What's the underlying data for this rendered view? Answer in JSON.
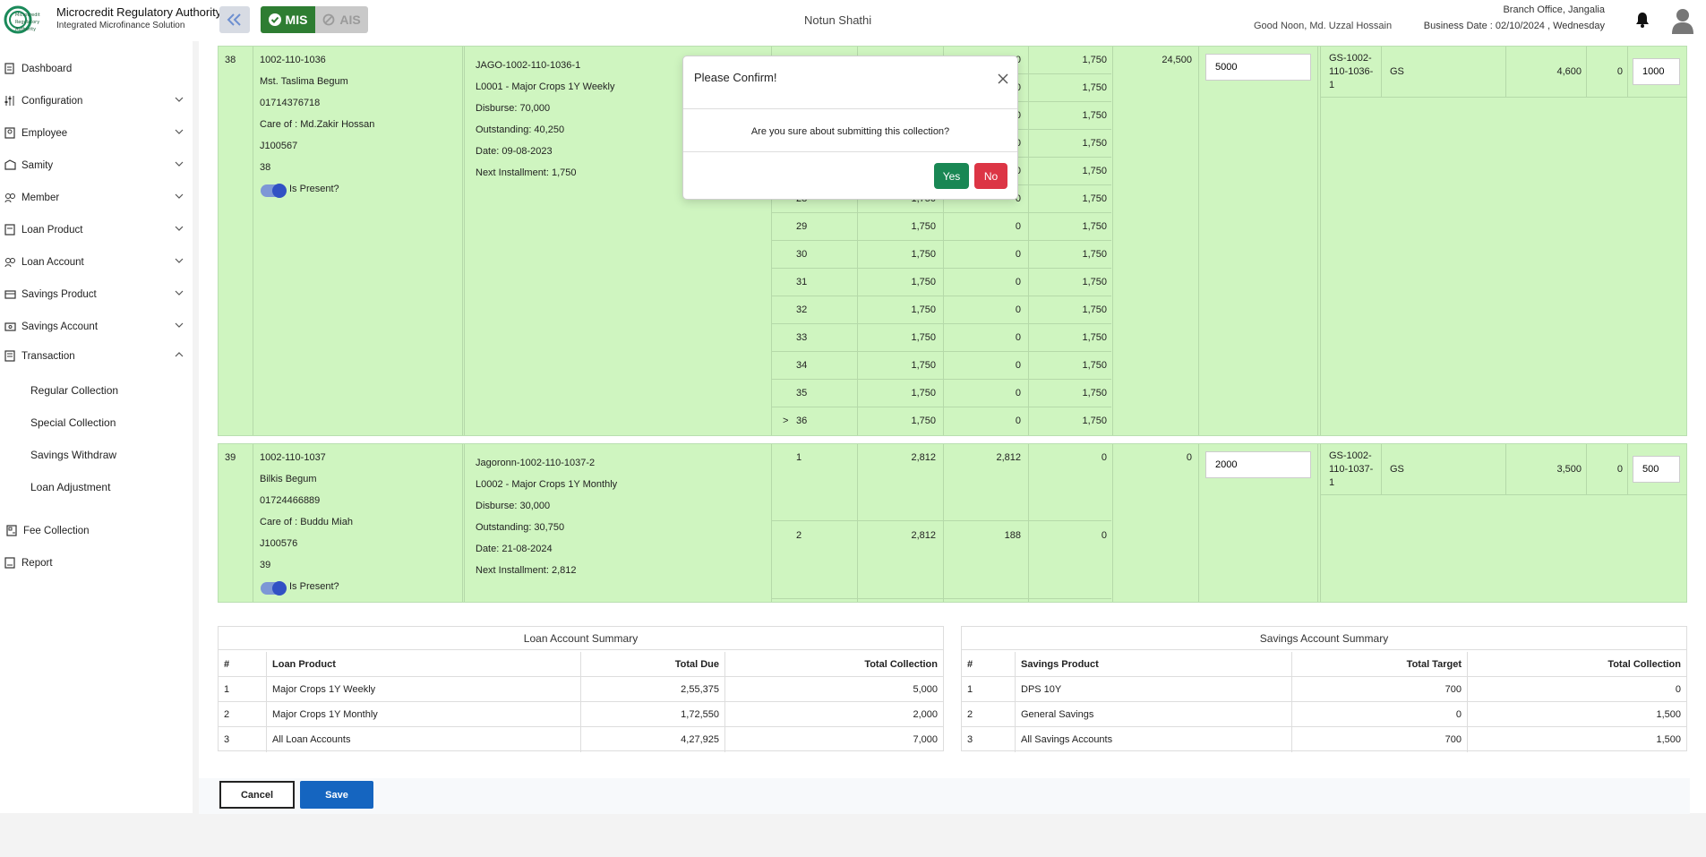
{
  "header": {
    "org_name": "Microcredit Regulatory Authority",
    "org_sub": "Integrated Microfinance Solution",
    "logo_text": "Microcredit Regulatory Authority",
    "mode_mis": "MIS",
    "mode_ais": "AIS",
    "samity_title": "Notun Shathi",
    "branch": "Branch Office, Jangalia",
    "greeting": "Good Noon, Md. Uzzal Hossain",
    "business_date": "Business Date : 02/10/2024 , Wednesday"
  },
  "sidebar": {
    "items": [
      {
        "label": "Dashboard",
        "icon": "dashboard-icon"
      },
      {
        "label": "Configuration",
        "icon": "sliders-icon"
      },
      {
        "label": "Employee",
        "icon": "employee-icon"
      },
      {
        "label": "Samity",
        "icon": "samity-icon"
      },
      {
        "label": "Member",
        "icon": "member-icon"
      },
      {
        "label": "Loan Product",
        "icon": "loan-product-icon"
      },
      {
        "label": "Loan Account",
        "icon": "loan-account-icon"
      },
      {
        "label": "Savings Product",
        "icon": "savings-product-icon"
      },
      {
        "label": "Savings Account",
        "icon": "savings-account-icon"
      },
      {
        "label": "Transaction",
        "icon": "transaction-icon"
      },
      {
        "label": "Fee Collection",
        "icon": "fee-icon"
      },
      {
        "label": "Report",
        "icon": "report-icon"
      }
    ],
    "transaction_sub": [
      "Regular Collection",
      "Special Collection",
      "Savings Withdraw",
      "Loan Adjustment"
    ]
  },
  "members": [
    {
      "serial": "38",
      "member_no": "1002-110-1036",
      "name": "Mst. Taslima Begum",
      "phone": "01714376718",
      "care_of": "Care of : Md.Zakir Hossan",
      "code": "J100567",
      "roll": "38",
      "present_label": "Is Present?",
      "loan": {
        "account": "JAGO-1002-110-1036-1",
        "product": "L0001 - Major Crops 1Y Weekly",
        "disburse": "Disburse: 70,000",
        "outstanding": "Outstanding: 40,250",
        "date": "Date: 09-08-2023",
        "next": "Next Installment: 1,750"
      },
      "installments": [
        {
          "no": "",
          "due": "",
          "paid": "0",
          "rem": "1,750"
        },
        {
          "no": "",
          "due": "",
          "paid": "0",
          "rem": "1,750"
        },
        {
          "no": "",
          "due": "",
          "paid": "0",
          "rem": "1,750"
        },
        {
          "no": "",
          "due": "",
          "paid": "0",
          "rem": "1,750"
        },
        {
          "no": "",
          "due": "",
          "paid": "0",
          "rem": "1,750"
        },
        {
          "no": "28",
          "due": "1,750",
          "paid": "0",
          "rem": "1,750"
        },
        {
          "no": "29",
          "due": "1,750",
          "paid": "0",
          "rem": "1,750"
        },
        {
          "no": "30",
          "due": "1,750",
          "paid": "0",
          "rem": "1,750"
        },
        {
          "no": "31",
          "due": "1,750",
          "paid": "0",
          "rem": "1,750"
        },
        {
          "no": "32",
          "due": "1,750",
          "paid": "0",
          "rem": "1,750"
        },
        {
          "no": "33",
          "due": "1,750",
          "paid": "0",
          "rem": "1,750"
        },
        {
          "no": "34",
          "due": "1,750",
          "paid": "0",
          "rem": "1,750"
        },
        {
          "no": "35",
          "due": "1,750",
          "paid": "0",
          "rem": "1,750"
        },
        {
          "no": "36",
          "due": "1,750",
          "paid": "0",
          "rem": "1,750",
          "marker": ">"
        }
      ],
      "total_due": "24,500",
      "loan_collection": "5000",
      "savings": {
        "account": "GS-1002-110-1036-1",
        "acc_l1": "GS-1002-",
        "acc_l2": "110-1036-",
        "acc_l3": "1",
        "product": "GS",
        "balance": "4,600",
        "target": "0",
        "collection": "1000"
      }
    },
    {
      "serial": "39",
      "member_no": "1002-110-1037",
      "name": "Bilkis Begum",
      "phone": "01724466889",
      "care_of": "Care of : Buddu Miah",
      "code": "J100576",
      "roll": "39",
      "present_label": "Is Present?",
      "loan": {
        "account": "Jagoronn-1002-110-1037-2",
        "product": "L0002 - Major Crops 1Y Monthly",
        "disburse": "Disburse: 30,000",
        "outstanding": "Outstanding: 30,750",
        "date": "Date: 21-08-2024",
        "next": "Next Installment: 2,812"
      },
      "installments": [
        {
          "no": "1",
          "due": "2,812",
          "paid": "2,812",
          "rem": "0"
        },
        {
          "no": "2",
          "due": "2,812",
          "paid": "188",
          "rem": "0"
        }
      ],
      "total_due": "0",
      "loan_collection": "2000",
      "savings": {
        "account": "GS-1002-110-1037-1",
        "acc_l1": "GS-1002-",
        "acc_l2": "110-1037-",
        "acc_l3": "1",
        "product": "GS",
        "balance": "3,500",
        "target": "0",
        "collection": "500"
      }
    }
  ],
  "loan_summary": {
    "title": "Loan Account Summary",
    "headers": [
      "#",
      "Loan Product",
      "Total Due",
      "Total Collection"
    ],
    "rows": [
      [
        "1",
        "Major Crops 1Y Weekly",
        "2,55,375",
        "5,000"
      ],
      [
        "2",
        "Major Crops 1Y Monthly",
        "1,72,550",
        "2,000"
      ],
      [
        "3",
        "All Loan Accounts",
        "4,27,925",
        "7,000"
      ]
    ]
  },
  "savings_summary": {
    "title": "Savings Account Summary",
    "headers": [
      "#",
      "Savings Product",
      "Total Target",
      "Total Collection"
    ],
    "rows": [
      [
        "1",
        "DPS 10Y",
        "700",
        "0"
      ],
      [
        "2",
        "General Savings",
        "0",
        "1,500"
      ],
      [
        "3",
        "All Savings Accounts",
        "700",
        "1,500"
      ]
    ]
  },
  "actions": {
    "cancel": "Cancel",
    "save": "Save"
  },
  "modal": {
    "title": "Please Confirm!",
    "message": "Are you sure about submitting this collection?",
    "yes": "Yes",
    "no": "No"
  },
  "colors": {
    "row_green": "#cff5c0",
    "mis_green": "#2e7d32",
    "save_blue": "#1565c0",
    "yes_green": "#198754",
    "no_red": "#dc3545"
  }
}
